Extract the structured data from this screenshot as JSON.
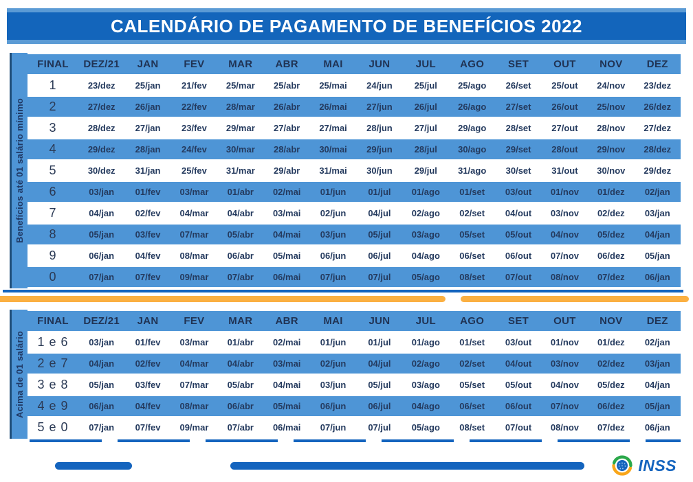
{
  "title": "CALENDÁRIO DE PAGAMENTO DE BENEFÍCIOS 2022",
  "colors": {
    "banner_blue": "#1365BB",
    "light_blue": "#5B9BD5",
    "stripe_blue": "#4E95D6",
    "navy_text": "#243A5E",
    "divider_yellow": "#FBB042",
    "footer_bar_blue": "#1464BE",
    "logo_green": "#2BA84A",
    "logo_orange": "#F9A61A"
  },
  "section_minimum_wage": {
    "side_label": "Benefícios até 01 salário mínimo",
    "headers": [
      "FINAL",
      "DEZ/21",
      "JAN",
      "FEV",
      "MAR",
      "ABR",
      "MAI",
      "JUN",
      "JUL",
      "AGO",
      "SET",
      "OUT",
      "NOV",
      "DEZ"
    ],
    "rows": [
      {
        "final": "1",
        "dates": [
          "23/dez",
          "25/jan",
          "21/fev",
          "25/mar",
          "25/abr",
          "25/mai",
          "24/jun",
          "25/jul",
          "25/ago",
          "26/set",
          "25/out",
          "24/nov",
          "23/dez"
        ]
      },
      {
        "final": "2",
        "dates": [
          "27/dez",
          "26/jan",
          "22/fev",
          "28/mar",
          "26/abr",
          "26/mai",
          "27/jun",
          "26/jul",
          "26/ago",
          "27/set",
          "26/out",
          "25/nov",
          "26/dez"
        ]
      },
      {
        "final": "3",
        "dates": [
          "28/dez",
          "27/jan",
          "23/fev",
          "29/mar",
          "27/abr",
          "27/mai",
          "28/jun",
          "27/jul",
          "29/ago",
          "28/set",
          "27/out",
          "28/nov",
          "27/dez"
        ]
      },
      {
        "final": "4",
        "dates": [
          "29/dez",
          "28/jan",
          "24/fev",
          "30/mar",
          "28/abr",
          "30/mai",
          "29/jun",
          "28/jul",
          "30/ago",
          "29/set",
          "28/out",
          "29/nov",
          "28/dez"
        ]
      },
      {
        "final": "5",
        "dates": [
          "30/dez",
          "31/jan",
          "25/fev",
          "31/mar",
          "29/abr",
          "31/mai",
          "30/jun",
          "29/jul",
          "31/ago",
          "30/set",
          "31/out",
          "30/nov",
          "29/dez"
        ]
      },
      {
        "final": "6",
        "dates": [
          "03/jan",
          "01/fev",
          "03/mar",
          "01/abr",
          "02/mai",
          "01/jun",
          "01/jul",
          "01/ago",
          "01/set",
          "03/out",
          "01/nov",
          "01/dez",
          "02/jan"
        ]
      },
      {
        "final": "7",
        "dates": [
          "04/jan",
          "02/fev",
          "04/mar",
          "04/abr",
          "03/mai",
          "02/jun",
          "04/jul",
          "02/ago",
          "02/set",
          "04/out",
          "03/nov",
          "02/dez",
          "03/jan"
        ]
      },
      {
        "final": "8",
        "dates": [
          "05/jan",
          "03/fev",
          "07/mar",
          "05/abr",
          "04/mai",
          "03/jun",
          "05/jul",
          "03/ago",
          "05/set",
          "05/out",
          "04/nov",
          "05/dez",
          "04/jan"
        ]
      },
      {
        "final": "9",
        "dates": [
          "06/jan",
          "04/fev",
          "08/mar",
          "06/abr",
          "05/mai",
          "06/jun",
          "06/jul",
          "04/ago",
          "06/set",
          "06/out",
          "07/nov",
          "06/dez",
          "05/jan"
        ]
      },
      {
        "final": "0",
        "dates": [
          "07/jan",
          "07/fev",
          "09/mar",
          "07/abr",
          "06/mai",
          "07/jun",
          "07/jul",
          "05/ago",
          "08/set",
          "07/out",
          "08/nov",
          "07/dez",
          "06/jan"
        ]
      }
    ]
  },
  "section_above_minimum": {
    "side_label": "Acima de 01 salário",
    "headers": [
      "FINAL",
      "DEZ/21",
      "JAN",
      "FEV",
      "MAR",
      "ABR",
      "MAI",
      "JUN",
      "JUL",
      "AGO",
      "SET",
      "OUT",
      "NOV",
      "DEZ"
    ],
    "rows": [
      {
        "final": "1 e 6",
        "dates": [
          "03/jan",
          "01/fev",
          "03/mar",
          "01/abr",
          "02/mai",
          "01/jun",
          "01/jul",
          "01/ago",
          "01/set",
          "03/out",
          "01/nov",
          "01/dez",
          "02/jan"
        ]
      },
      {
        "final": "2 e 7",
        "dates": [
          "04/jan",
          "02/fev",
          "04/mar",
          "04/abr",
          "03/mai",
          "02/jun",
          "04/jul",
          "02/ago",
          "02/set",
          "04/out",
          "03/nov",
          "02/dez",
          "03/jan"
        ]
      },
      {
        "final": "3 e 8",
        "dates": [
          "05/jan",
          "03/fev",
          "07/mar",
          "05/abr",
          "04/mai",
          "03/jun",
          "05/jul",
          "03/ago",
          "05/set",
          "05/out",
          "04/nov",
          "05/dez",
          "04/jan"
        ]
      },
      {
        "final": "4 e 9",
        "dates": [
          "06/jan",
          "04/fev",
          "08/mar",
          "06/abr",
          "05/mai",
          "06/jun",
          "06/jul",
          "04/ago",
          "06/set",
          "06/out",
          "07/nov",
          "06/dez",
          "05/jan"
        ]
      },
      {
        "final": "5 e 0",
        "dates": [
          "07/jan",
          "07/fev",
          "09/mar",
          "07/abr",
          "06/mai",
          "07/jun",
          "07/jul",
          "05/ago",
          "08/set",
          "07/out",
          "08/nov",
          "07/dez",
          "06/jan"
        ]
      }
    ]
  },
  "footer": {
    "logo_text": "INSS"
  }
}
